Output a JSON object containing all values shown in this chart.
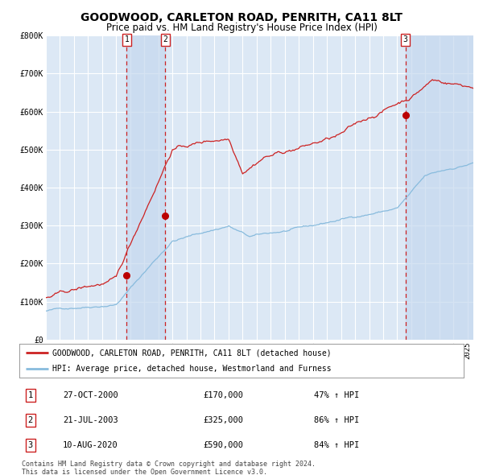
{
  "title": "GOODWOOD, CARLETON ROAD, PENRITH, CA11 8LT",
  "subtitle": "Price paid vs. HM Land Registry's House Price Index (HPI)",
  "title_fontsize": 10,
  "subtitle_fontsize": 8.5,
  "background_color": "#ffffff",
  "plot_bg_color": "#dce8f5",
  "grid_color": "#ffffff",
  "sale_prices": [
    170000,
    325000,
    590000
  ],
  "sale_labels": [
    "1",
    "2",
    "3"
  ],
  "sale_date_labels": [
    "27-OCT-2000",
    "21-JUL-2003",
    "10-AUG-2020"
  ],
  "sale_price_labels": [
    "£170,000",
    "£325,000",
    "£590,000"
  ],
  "sale_pct_labels": [
    "47% ↑ HPI",
    "86% ↑ HPI",
    "84% ↑ HPI"
  ],
  "hpi_line_color": "#88bbdd",
  "price_line_color": "#cc2222",
  "marker_color": "#bb0000",
  "dashed_line_color": "#cc2222",
  "shade_color": "#c5d8ee",
  "legend_label_price": "GOODWOOD, CARLETON ROAD, PENRITH, CA11 8LT (detached house)",
  "legend_label_hpi": "HPI: Average price, detached house, Westmorland and Furness",
  "footer": "Contains HM Land Registry data © Crown copyright and database right 2024.\nThis data is licensed under the Open Government Licence v3.0.",
  "ylim": [
    0,
    800000
  ],
  "yticks": [
    0,
    100000,
    200000,
    300000,
    400000,
    500000,
    600000,
    700000,
    800000
  ],
  "ytick_labels": [
    "£0",
    "£100K",
    "£200K",
    "£300K",
    "£400K",
    "£500K",
    "£600K",
    "£700K",
    "£800K"
  ]
}
